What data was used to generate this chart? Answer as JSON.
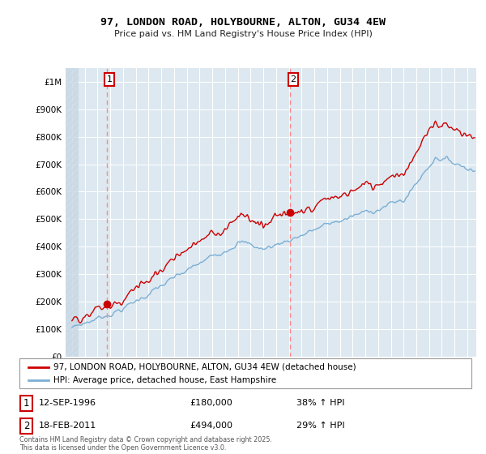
{
  "title": "97, LONDON ROAD, HOLYBOURNE, ALTON, GU34 4EW",
  "subtitle": "Price paid vs. HM Land Registry's House Price Index (HPI)",
  "background_color": "#ffffff",
  "plot_bg_color": "#dde8f0",
  "grid_color": "#ffffff",
  "red_line_color": "#cc0000",
  "blue_line_color": "#7bafd4",
  "dashed_line_color": "#ff8888",
  "annotation1": {
    "label": "1",
    "date": 1996.71,
    "value": 180000
  },
  "annotation2": {
    "label": "2",
    "date": 2011.12,
    "value": 494000
  },
  "legend1": "97, LONDON ROAD, HOLYBOURNE, ALTON, GU34 4EW (detached house)",
  "legend2": "HPI: Average price, detached house, East Hampshire",
  "table_row1": [
    "1",
    "12-SEP-1996",
    "£180,000",
    "38% ↑ HPI"
  ],
  "table_row2": [
    "2",
    "18-FEB-2011",
    "£494,000",
    "29% ↑ HPI"
  ],
  "footer": "Contains HM Land Registry data © Crown copyright and database right 2025.\nThis data is licensed under the Open Government Licence v3.0.",
  "ylim": [
    0,
    1050000
  ],
  "xlim_start": 1993.5,
  "xlim_end": 2025.7,
  "hatch_end": 1994.5
}
